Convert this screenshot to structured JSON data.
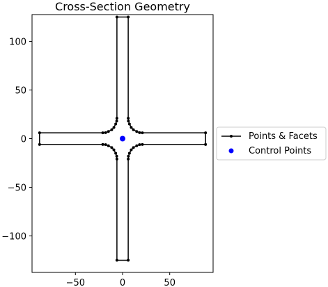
{
  "chart_data": {
    "type": "line",
    "title": "Cross-Section Geometry",
    "xlabel": "",
    "ylabel": "",
    "xlim": [
      -96,
      96
    ],
    "ylim": [
      -137.5,
      127.5
    ],
    "xticks": [
      -50,
      0,
      50
    ],
    "xtick_labels": [
      "−50",
      "0",
      "50"
    ],
    "yticks": [
      -100,
      -50,
      0,
      50,
      100
    ],
    "ytick_labels": [
      "−100",
      "−50",
      "0",
      "50",
      "100"
    ],
    "grid": false,
    "legend_position": "outside-right",
    "series": [
      {
        "name": "Points & Facets",
        "color": "#000000",
        "closed": true,
        "points": [
          [
            -6,
            125
          ],
          [
            6,
            125
          ],
          [
            6,
            21
          ],
          [
            6.2,
            18
          ],
          [
            7.3,
            15
          ],
          [
            9.2,
            11.5
          ],
          [
            11.5,
            9.2
          ],
          [
            15,
            7.3
          ],
          [
            18,
            6.2
          ],
          [
            21,
            6
          ],
          [
            88,
            6
          ],
          [
            88,
            -6
          ],
          [
            21,
            -6
          ],
          [
            18,
            -6.2
          ],
          [
            15,
            -7.3
          ],
          [
            11.5,
            -9.2
          ],
          [
            9.2,
            -11.5
          ],
          [
            7.3,
            -15
          ],
          [
            6.2,
            -18
          ],
          [
            6,
            -21
          ],
          [
            6,
            -125
          ],
          [
            -6,
            -125
          ],
          [
            -6,
            -21
          ],
          [
            -6.2,
            -18
          ],
          [
            -7.3,
            -15
          ],
          [
            -9.2,
            -11.5
          ],
          [
            -11.5,
            -9.2
          ],
          [
            -15,
            -7.3
          ],
          [
            -18,
            -6.2
          ],
          [
            -21,
            -6
          ],
          [
            -88,
            -6
          ],
          [
            -88,
            6
          ],
          [
            -21,
            6
          ],
          [
            -18,
            6.2
          ],
          [
            -15,
            7.3
          ],
          [
            -11.5,
            9.2
          ],
          [
            -9.2,
            11.5
          ],
          [
            -7.3,
            15
          ],
          [
            -6.2,
            18
          ],
          [
            -6,
            21
          ]
        ]
      },
      {
        "name": "Control Points",
        "color": "#0000ff",
        "marker_only": true,
        "points": [
          [
            0,
            0
          ]
        ]
      }
    ]
  }
}
